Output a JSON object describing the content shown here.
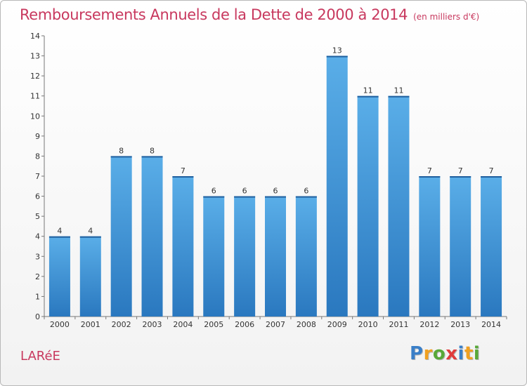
{
  "chart_data": {
    "type": "bar",
    "title": "Remboursements Annuels de la Dette de 2000 à 2014",
    "subtitle": "(en milliers d'€)",
    "xlabel": "",
    "ylabel": "",
    "categories": [
      "2000",
      "2001",
      "2002",
      "2003",
      "2004",
      "2005",
      "2006",
      "2007",
      "2008",
      "2009",
      "2010",
      "2011",
      "2012",
      "2013",
      "2014"
    ],
    "values": [
      4,
      4,
      8,
      8,
      7,
      6,
      6,
      6,
      6,
      13,
      11,
      11,
      7,
      7,
      7
    ],
    "data_labels": [
      "4",
      "4",
      "8",
      "8",
      "7",
      "6",
      "6",
      "6",
      "6",
      "13",
      "11",
      "11",
      "7",
      "7",
      "7"
    ],
    "ylim": [
      0,
      14
    ],
    "yticks": [
      0,
      1,
      2,
      3,
      4,
      5,
      6,
      7,
      8,
      9,
      10,
      11,
      12,
      13,
      14
    ],
    "grid": false,
    "bar_color": "#4a9fe0",
    "bar_color_dark": "#2a78bf"
  },
  "footer": {
    "commune": "LARéE",
    "logo_letters": [
      "P",
      "r",
      "o",
      "x",
      "i",
      "t",
      "i"
    ],
    "logo_colors": [
      "#3a7fc8",
      "#f0a020",
      "#58a838",
      "#e03c3c",
      "#3a7fc8",
      "#f0a020",
      "#58a838"
    ]
  },
  "colors": {
    "title": "#c8385e",
    "axis": "#777777"
  }
}
